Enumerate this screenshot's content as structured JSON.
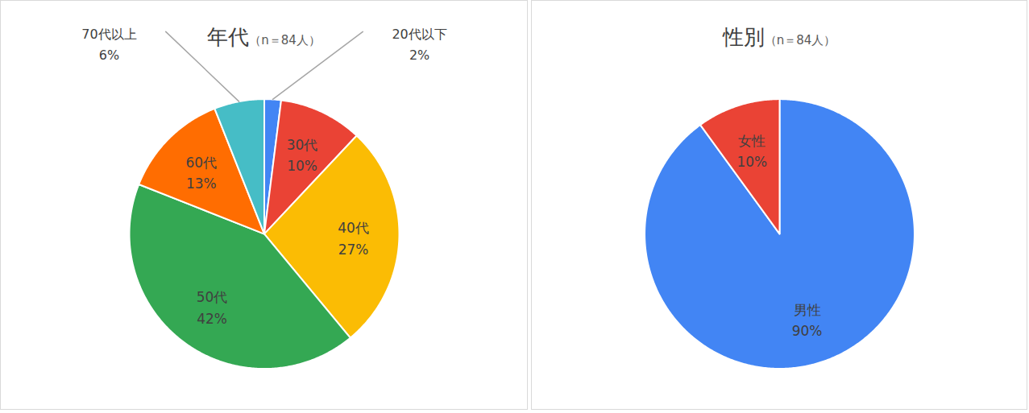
{
  "chart_data": [
    {
      "type": "pie",
      "title": "年代",
      "subtitle": "（n＝84人）",
      "categories": [
        "20代以下",
        "30代",
        "40代",
        "50代",
        "60代",
        "70代以上"
      ],
      "values": [
        2,
        10,
        27,
        42,
        13,
        6
      ],
      "value_labels": [
        "2%",
        "10%",
        "27%",
        "42%",
        "13%",
        "6%"
      ],
      "colors": [
        "#4285f4",
        "#ea4335",
        "#fbbc04",
        "#34a853",
        "#ff6d01",
        "#46bdc6"
      ],
      "data_labels": true
    },
    {
      "type": "pie",
      "title": "性別",
      "subtitle": "（n＝84人）",
      "categories": [
        "男性",
        "女性"
      ],
      "values": [
        90,
        10
      ],
      "value_labels": [
        "90%",
        "10%"
      ],
      "colors": [
        "#4285f4",
        "#ea4335"
      ],
      "data_labels": true
    }
  ]
}
